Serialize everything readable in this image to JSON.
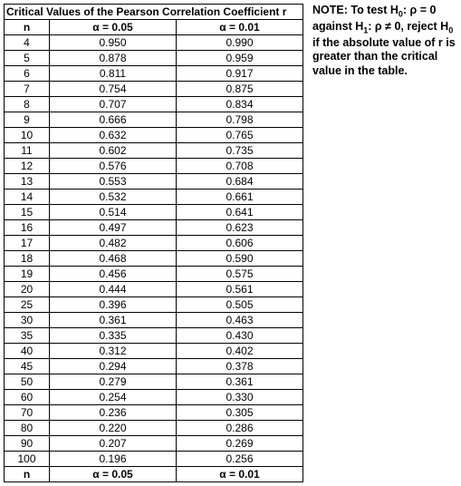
{
  "table": {
    "title": "Critical Values of the Pearson Correlation Coefficient r",
    "columns": {
      "n": "n",
      "alpha05": "α = 0.05",
      "alpha01": "α = 0.01"
    },
    "rows": [
      {
        "n": "4",
        "a05": "0.950",
        "a01": "0.990"
      },
      {
        "n": "5",
        "a05": "0.878",
        "a01": "0.959"
      },
      {
        "n": "6",
        "a05": "0.811",
        "a01": "0.917"
      },
      {
        "n": "7",
        "a05": "0.754",
        "a01": "0.875"
      },
      {
        "n": "8",
        "a05": "0.707",
        "a01": "0.834"
      },
      {
        "n": "9",
        "a05": "0.666",
        "a01": "0.798"
      },
      {
        "n": "10",
        "a05": "0.632",
        "a01": "0.765"
      },
      {
        "n": "11",
        "a05": "0.602",
        "a01": "0.735"
      },
      {
        "n": "12",
        "a05": "0.576",
        "a01": "0.708"
      },
      {
        "n": "13",
        "a05": "0.553",
        "a01": "0.684"
      },
      {
        "n": "14",
        "a05": "0.532",
        "a01": "0.661"
      },
      {
        "n": "15",
        "a05": "0.514",
        "a01": "0.641"
      },
      {
        "n": "16",
        "a05": "0.497",
        "a01": "0.623"
      },
      {
        "n": "17",
        "a05": "0.482",
        "a01": "0.606"
      },
      {
        "n": "18",
        "a05": "0.468",
        "a01": "0.590"
      },
      {
        "n": "19",
        "a05": "0.456",
        "a01": "0.575"
      },
      {
        "n": "20",
        "a05": "0.444",
        "a01": "0.561"
      },
      {
        "n": "25",
        "a05": "0.396",
        "a01": "0.505"
      },
      {
        "n": "30",
        "a05": "0.361",
        "a01": "0.463"
      },
      {
        "n": "35",
        "a05": "0.335",
        "a01": "0.430"
      },
      {
        "n": "40",
        "a05": "0.312",
        "a01": "0.402"
      },
      {
        "n": "45",
        "a05": "0.294",
        "a01": "0.378"
      },
      {
        "n": "50",
        "a05": "0.279",
        "a01": "0.361"
      },
      {
        "n": "60",
        "a05": "0.254",
        "a01": "0.330"
      },
      {
        "n": "70",
        "a05": "0.236",
        "a01": "0.305"
      },
      {
        "n": "80",
        "a05": "0.220",
        "a01": "0.286"
      },
      {
        "n": "90",
        "a05": "0.207",
        "a01": "0.269"
      },
      {
        "n": "100",
        "a05": "0.196",
        "a01": "0.256"
      }
    ],
    "footer": {
      "n": "n",
      "a05": "α = 0.05",
      "a01": "α = 0.01"
    },
    "border_color": "#000000",
    "background_color": "#ffffff",
    "font_size_pt": 9
  },
  "note": {
    "html": "NOTE: To test H<sub>0</sub>: ρ = 0 against H<sub>1</sub>: ρ ≠ 0, reject H<sub>0</sub> if the absolute value of r is greater than the critical value in the table.",
    "font_size_pt": 9.5,
    "font_weight": "bold"
  }
}
